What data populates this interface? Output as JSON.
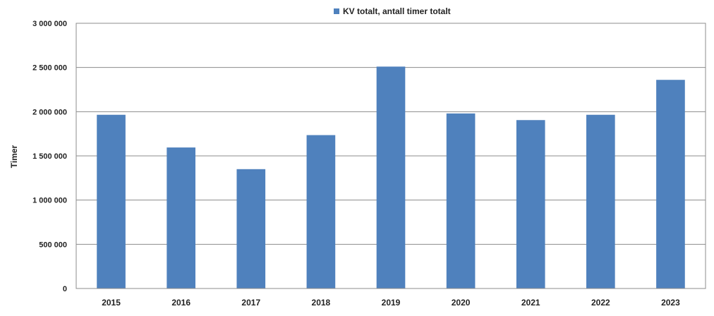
{
  "chart_data": {
    "type": "bar",
    "categories": [
      "2015",
      "2016",
      "2017",
      "2018",
      "2019",
      "2020",
      "2021",
      "2022",
      "2023"
    ],
    "series": [
      {
        "name": "KV totalt, antall timer totalt",
        "color": "#4f81bd",
        "values": [
          1965000,
          1595000,
          1350000,
          1735000,
          2510000,
          1980000,
          1905000,
          1965000,
          2360000
        ]
      }
    ],
    "ylabel": "Timer",
    "ylim": [
      0,
      3000000
    ],
    "yticks": [
      0,
      500000,
      1000000,
      1500000,
      2000000,
      2500000,
      3000000
    ],
    "ytick_labels": [
      "0",
      "500 000",
      "1 000 000",
      "1 500 000",
      "2 000 000",
      "2 500 000",
      "3 000 000"
    ],
    "grid": true,
    "legend_position": "top-center"
  }
}
